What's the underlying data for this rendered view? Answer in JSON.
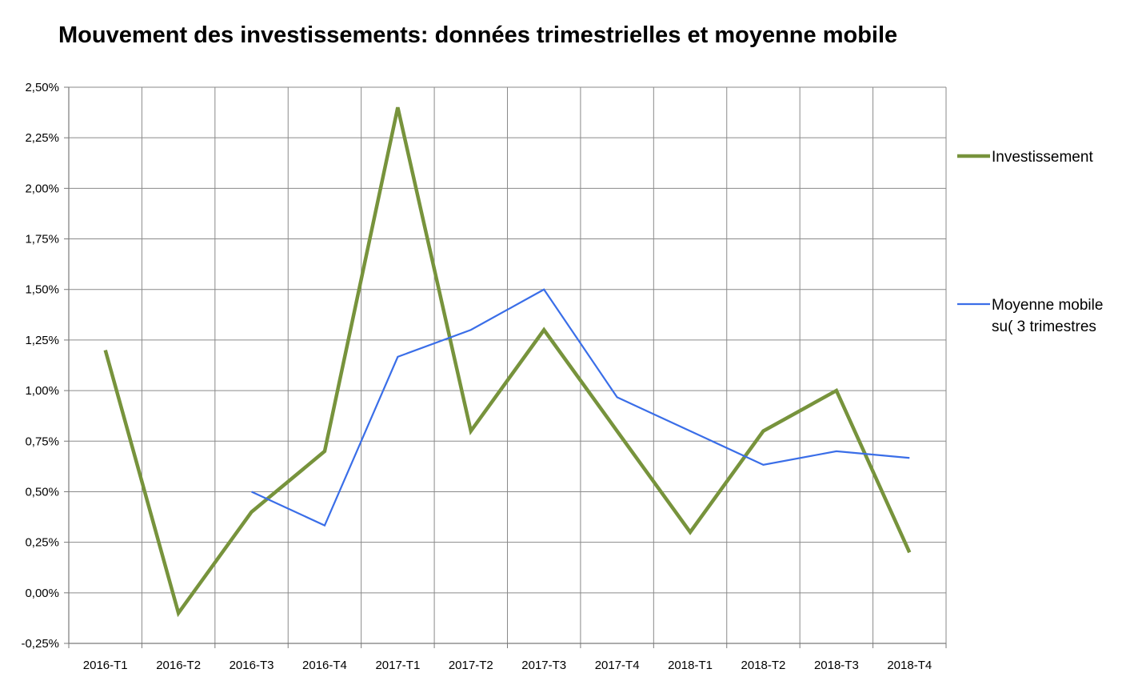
{
  "chart_data": {
    "type": "line",
    "title": "Mouvement des investissements: données trimestrielles et moyenne mobile",
    "categories": [
      "2016-T1",
      "2016-T2",
      "2016-T3",
      "2016-T4",
      "2017-T1",
      "2017-T2",
      "2017-T3",
      "2017-T4",
      "2018-T1",
      "2018-T2",
      "2018-T3",
      "2018-T4"
    ],
    "ylim": [
      -0.25,
      2.5
    ],
    "yticks": [
      -0.25,
      0,
      0.25,
      0.5,
      0.75,
      1.0,
      1.25,
      1.5,
      1.75,
      2.0,
      2.25,
      2.5
    ],
    "ytick_labels": [
      "-0,25%",
      "0,00%",
      "0,25%",
      "0,50%",
      "0,75%",
      "1,00%",
      "1,25%",
      "1,50%",
      "1,75%",
      "2,00%",
      "2,25%",
      "2,50%"
    ],
    "grid": true,
    "legend_position": "right",
    "series": [
      {
        "name": "Investissement",
        "color": "#77933c",
        "values": [
          1.2,
          -0.1,
          0.4,
          0.7,
          2.4,
          0.8,
          1.3,
          0.8,
          0.3,
          0.8,
          1.0,
          0.2
        ]
      },
      {
        "name_lines": [
          "Moyenne mobile",
          "su( 3 trimestres"
        ],
        "color": "#3a6ee8",
        "values": [
          null,
          null,
          0.5,
          0.333,
          1.167,
          1.3,
          1.5,
          0.967,
          0.8,
          0.633,
          0.7,
          0.667
        ]
      }
    ]
  }
}
